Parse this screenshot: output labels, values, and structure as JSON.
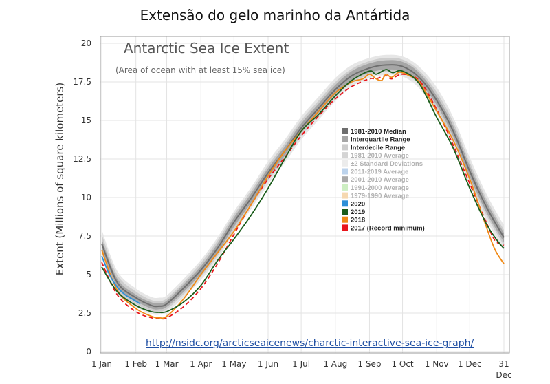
{
  "page": {
    "heading": "Extensão do gelo marinho da Antártida",
    "link": "http://nsidc.org/arcticseaicenews/charctic-interactive-sea-ice-graph/"
  },
  "colors": {
    "median": "#6e6e6e",
    "iqr": "#a6a6a6",
    "idr": "#cdcdcd",
    "std": "#e6e6e6",
    "s2020": "#2d8fd8",
    "s2019": "#1a5c1a",
    "s2018": "#f08a16",
    "s2017": "#e8151b"
  },
  "chart_data": {
    "type": "line",
    "title": "Antarctic Sea Ice Extent",
    "subtitle": "(Area of ocean with at least 15% sea ice)",
    "ylabel": "Extent (Millions of square kilometers)",
    "xlabel": "",
    "ylim": [
      0,
      20
    ],
    "yticks": [
      0,
      2.5,
      5,
      7.5,
      10,
      12.5,
      15,
      17.5,
      20
    ],
    "ytick_labels": [
      "0",
      "2.5",
      "5",
      "7.5",
      "10",
      "12.5",
      "15",
      "17.5",
      "20"
    ],
    "xlim": [
      1,
      366
    ],
    "xticks": [
      1,
      32,
      60,
      91,
      121,
      152,
      182,
      213,
      244,
      274,
      305,
      335,
      366
    ],
    "xtick_labels": [
      "1 Jan",
      "1 Feb",
      "1 Mar",
      "1 Apr",
      "1 May",
      "1 Jun",
      "1 Jul",
      "1 Aug",
      "1 Sep",
      "1 Oct",
      "1 Nov",
      "1 Dec",
      "31"
    ],
    "xtick_sublabel": "Dec",
    "grid": true,
    "legend_position": "right-center",
    "legend": [
      {
        "label": "1981-2010 Median",
        "color": "#6e6e6e",
        "muted": false
      },
      {
        "label": "Interquartile Range",
        "color": "#a6a6a6",
        "muted": false
      },
      {
        "label": "Interdecile Range",
        "color": "#cdcdcd",
        "muted": false
      },
      {
        "label": "1981-2010 Average",
        "color": "#d4d4d4",
        "muted": true
      },
      {
        "label": "±2 Standard Deviations",
        "color": "#ececec",
        "muted": true
      },
      {
        "label": "2011-2019 Average",
        "color": "#bcd3ec",
        "muted": true
      },
      {
        "label": "2001-2010 Average",
        "color": "#a9a9a9",
        "muted": true
      },
      {
        "label": "1991-2000 Average",
        "color": "#cdeec2",
        "muted": true
      },
      {
        "label": "1979-1990 Average",
        "color": "#f6d8b0",
        "muted": true
      },
      {
        "label": "2020",
        "color": "#2d8fd8",
        "muted": false
      },
      {
        "label": "2019",
        "color": "#1a5c1a",
        "muted": false
      },
      {
        "label": "2018",
        "color": "#f08a16",
        "muted": false
      },
      {
        "label": "2017 (Record minimum)",
        "color": "#e8151b",
        "muted": false
      }
    ],
    "bands": {
      "x": [
        1,
        15,
        32,
        46,
        53,
        60,
        75,
        91,
        106,
        121,
        137,
        152,
        167,
        182,
        198,
        213,
        228,
        244,
        259,
        274,
        289,
        305,
        320,
        335,
        350,
        366
      ],
      "median": [
        7.0,
        4.5,
        3.5,
        3.0,
        2.95,
        3.1,
        4.1,
        5.3,
        6.7,
        8.4,
        10.0,
        11.6,
        13.0,
        14.5,
        15.8,
        17.0,
        17.9,
        18.4,
        18.6,
        18.5,
        17.8,
        16.3,
        14.3,
        11.7,
        9.4,
        7.4
      ],
      "iqr": [
        0.3,
        0.25,
        0.2,
        0.2,
        0.2,
        0.2,
        0.25,
        0.25,
        0.3,
        0.3,
        0.3,
        0.3,
        0.3,
        0.3,
        0.3,
        0.3,
        0.3,
        0.3,
        0.3,
        0.3,
        0.3,
        0.3,
        0.35,
        0.35,
        0.35,
        0.3
      ],
      "idr": [
        0.6,
        0.5,
        0.4,
        0.35,
        0.35,
        0.35,
        0.4,
        0.45,
        0.5,
        0.5,
        0.5,
        0.5,
        0.5,
        0.5,
        0.5,
        0.5,
        0.45,
        0.45,
        0.45,
        0.45,
        0.45,
        0.55,
        0.6,
        0.6,
        0.55,
        0.5
      ],
      "std": [
        0.9,
        0.75,
        0.6,
        0.55,
        0.55,
        0.55,
        0.6,
        0.65,
        0.7,
        0.7,
        0.7,
        0.75,
        0.75,
        0.75,
        0.75,
        0.75,
        0.7,
        0.65,
        0.65,
        0.65,
        0.7,
        0.85,
        0.9,
        0.9,
        0.85,
        0.8
      ]
    },
    "series": [
      {
        "name": "2020",
        "color": "#2d8fd8",
        "dashed": false,
        "x": [
          1,
          8,
          15,
          22,
          29,
          36
        ],
        "y": [
          6.2,
          5.0,
          4.2,
          3.7,
          3.4,
          3.1
        ]
      },
      {
        "name": "2019",
        "color": "#1a5c1a",
        "dashed": false,
        "x": [
          1,
          15,
          32,
          46,
          53,
          60,
          75,
          91,
          106,
          121,
          137,
          152,
          167,
          182,
          198,
          213,
          228,
          244,
          250,
          259,
          265,
          274,
          289,
          305,
          320,
          335,
          350,
          360,
          366
        ],
        "y": [
          5.5,
          3.9,
          3.0,
          2.6,
          2.55,
          2.6,
          3.2,
          4.3,
          5.9,
          7.3,
          8.9,
          10.6,
          12.5,
          14.3,
          15.4,
          16.6,
          17.6,
          18.2,
          18.0,
          18.3,
          18.1,
          18.2,
          17.4,
          15.2,
          13.2,
          10.6,
          8.3,
          7.2,
          6.7
        ]
      },
      {
        "name": "2018",
        "color": "#f08a16",
        "dashed": false,
        "x": [
          1,
          15,
          32,
          46,
          53,
          60,
          75,
          91,
          106,
          121,
          137,
          152,
          167,
          182,
          198,
          213,
          228,
          238,
          244,
          250,
          255,
          259,
          264,
          270,
          274,
          280,
          289,
          305,
          320,
          335,
          350,
          358,
          366
        ],
        "y": [
          6.6,
          4.0,
          2.8,
          2.3,
          2.2,
          2.3,
          3.4,
          5.0,
          6.4,
          7.8,
          9.6,
          11.4,
          13.0,
          14.3,
          15.6,
          16.8,
          17.5,
          17.7,
          18.0,
          17.7,
          17.6,
          18.0,
          17.8,
          18.1,
          18.1,
          17.9,
          17.5,
          15.6,
          13.7,
          11.2,
          8.1,
          6.6,
          5.7
        ]
      },
      {
        "name": "2017 (Record minimum)",
        "color": "#e8151b",
        "dashed": true,
        "x": [
          1,
          15,
          32,
          46,
          53,
          60,
          75,
          91,
          106,
          121,
          137,
          152,
          167,
          182,
          198,
          213,
          228,
          244,
          250,
          259,
          264,
          274,
          289,
          305,
          320,
          335,
          350,
          358,
          366
        ],
        "y": [
          5.8,
          3.7,
          2.6,
          2.2,
          2.15,
          2.2,
          2.9,
          4.1,
          5.7,
          7.6,
          9.6,
          11.2,
          12.6,
          14.0,
          15.3,
          16.4,
          17.2,
          17.7,
          17.7,
          17.9,
          17.7,
          18.0,
          17.6,
          15.7,
          13.4,
          10.9,
          8.4,
          7.2,
          6.9
        ]
      }
    ]
  }
}
